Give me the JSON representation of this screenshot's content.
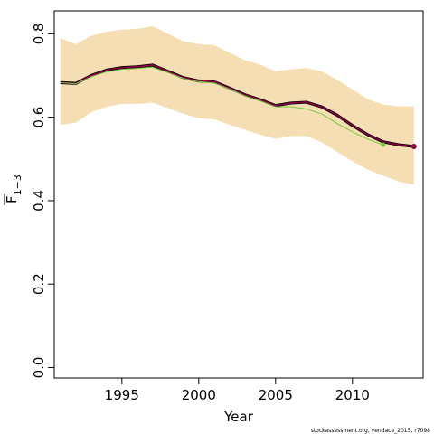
{
  "chart_data": {
    "type": "line",
    "xlabel": "Year",
    "ylabel_main": "F",
    "ylabel_subscript": "1−3",
    "footnote": "stockassessment.org, vendace_2015, r7098",
    "xlim": [
      1990.6,
      2014.6
    ],
    "ylim": [
      -0.025,
      0.855
    ],
    "x_ticks": [
      1995,
      2000,
      2005,
      2010
    ],
    "y_ticks": [
      0.0,
      0.2,
      0.4,
      0.6,
      0.8
    ],
    "y_tick_labels": [
      "0.0",
      "0.2",
      "0.4",
      "0.6",
      "0.8"
    ],
    "grid": false,
    "legend": "none",
    "colors": {
      "band": "#f5deb3",
      "main_line": "#000000",
      "main_overlay": "#8b0045",
      "retro_line": "#7ac943",
      "frame": "#000000"
    },
    "series": [
      {
        "x": [
          1991,
          1992,
          1993,
          1994,
          1995,
          1996,
          1997,
          1998,
          1999,
          2000,
          2001,
          2002,
          2003,
          2004,
          2005,
          2006,
          2007,
          2008,
          2009,
          2010,
          2011,
          2012,
          2013,
          2014
        ],
        "values": [
          0.683,
          0.681,
          0.7,
          0.713,
          0.719,
          0.721,
          0.725,
          0.71,
          0.695,
          0.687,
          0.685,
          0.67,
          0.654,
          0.642,
          0.628,
          0.634,
          0.636,
          0.625,
          0.605,
          0.58,
          0.558,
          0.541,
          0.534,
          0.53
        ],
        "lower": [
          0.582,
          0.587,
          0.612,
          0.625,
          0.632,
          0.632,
          0.635,
          0.622,
          0.608,
          0.598,
          0.595,
          0.582,
          0.57,
          0.558,
          0.548,
          0.555,
          0.555,
          0.54,
          0.517,
          0.494,
          0.474,
          0.46,
          0.446,
          0.438
        ],
        "upper": [
          0.79,
          0.775,
          0.795,
          0.805,
          0.81,
          0.812,
          0.818,
          0.8,
          0.782,
          0.775,
          0.773,
          0.755,
          0.737,
          0.726,
          0.71,
          0.715,
          0.718,
          0.71,
          0.69,
          0.667,
          0.643,
          0.63,
          0.626,
          0.626
        ]
      },
      {
        "x": [
          1991,
          1992,
          1993,
          1994,
          1995,
          1996,
          1997,
          1998,
          1999,
          2000,
          2001,
          2002,
          2003,
          2004,
          2005,
          2006,
          2007,
          2008,
          2009,
          2010,
          2011,
          2012
        ],
        "values": [
          0.683,
          0.68,
          0.697,
          0.709,
          0.715,
          0.717,
          0.72,
          0.707,
          0.693,
          0.685,
          0.682,
          0.668,
          0.651,
          0.639,
          0.625,
          0.625,
          0.62,
          0.608,
          0.585,
          0.565,
          0.547,
          0.534
        ]
      }
    ]
  }
}
